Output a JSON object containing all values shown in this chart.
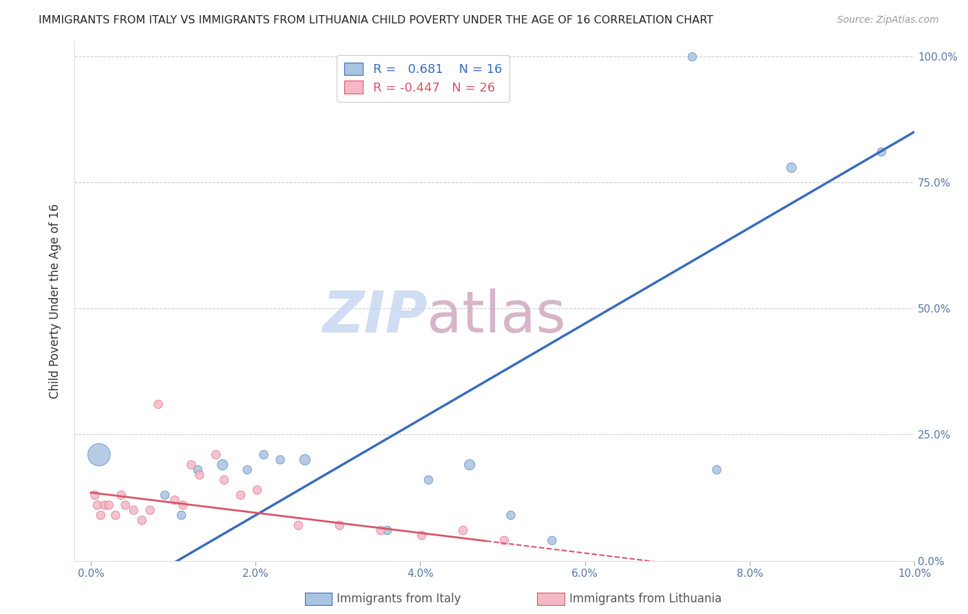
{
  "title": "IMMIGRANTS FROM ITALY VS IMMIGRANTS FROM LITHUANIA CHILD POVERTY UNDER THE AGE OF 16 CORRELATION CHART",
  "source": "Source: ZipAtlas.com",
  "ylabel": "Child Poverty Under the Age of 16",
  "x_label_blue": "Immigrants from Italy",
  "x_label_pink": "Immigrants from Lithuania",
  "xlim": [
    -0.2,
    10.0
  ],
  "ylim": [
    0.0,
    103.0
  ],
  "xtick_vals": [
    0.0,
    2.0,
    4.0,
    6.0,
    8.0,
    10.0
  ],
  "xtick_labels": [
    "0.0%",
    "2.0%",
    "4.0%",
    "6.0%",
    "8.0%",
    "10.0%"
  ],
  "ytick_vals": [
    0.0,
    25.0,
    50.0,
    75.0,
    100.0
  ],
  "ytick_labels": [
    "0.0%",
    "25.0%",
    "50.0%",
    "75.0%",
    "100.0%"
  ],
  "R_blue": 0.681,
  "N_blue": 16,
  "R_pink": -0.447,
  "N_pink": 26,
  "blue_color": "#a8c4e0",
  "blue_line_color": "#3a6bbf",
  "pink_color": "#f4b8c8",
  "pink_line_color": "#d9546a",
  "watermark_zip": "ZIP",
  "watermark_atlas": "atlas",
  "watermark_color_zip": "#c8d8f0",
  "watermark_color_atlas": "#c8d8f0",
  "blue_scatter_x": [
    0.1,
    0.9,
    1.1,
    1.3,
    1.6,
    1.9,
    2.1,
    2.3,
    2.6,
    3.6,
    4.1,
    4.6,
    5.1,
    5.6,
    7.6,
    9.6
  ],
  "blue_scatter_y": [
    21,
    13,
    9,
    18,
    19,
    18,
    21,
    20,
    20,
    6,
    16,
    19,
    9,
    4,
    18,
    81
  ],
  "blue_scatter_size": [
    550,
    80,
    80,
    80,
    120,
    80,
    80,
    80,
    120,
    80,
    80,
    120,
    80,
    80,
    80,
    80
  ],
  "pink_scatter_x": [
    0.05,
    0.08,
    0.12,
    0.17,
    0.22,
    0.3,
    0.37,
    0.42,
    0.52,
    0.62,
    0.72,
    0.82,
    1.02,
    1.12,
    1.22,
    1.32,
    1.52,
    1.62,
    1.82,
    2.02,
    2.52,
    3.02,
    3.52,
    4.02,
    4.52,
    5.02
  ],
  "pink_scatter_y": [
    13,
    11,
    9,
    11,
    11,
    9,
    13,
    11,
    10,
    8,
    10,
    31,
    12,
    11,
    19,
    17,
    21,
    16,
    13,
    14,
    7,
    7,
    6,
    5,
    6,
    4
  ],
  "pink_scatter_size": [
    80,
    80,
    80,
    80,
    80,
    80,
    80,
    80,
    80,
    80,
    80,
    80,
    80,
    80,
    80,
    80,
    80,
    80,
    80,
    80,
    80,
    80,
    80,
    80,
    80,
    80
  ],
  "blue_high_x": 7.3,
  "blue_high_y": 100.0,
  "blue_medium_x": 8.5,
  "blue_medium_y": 78.0,
  "blue_line_intercept": -10.0,
  "blue_line_slope": 9.5,
  "pink_line_intercept": 13.5,
  "pink_line_slope": -2.0,
  "pink_solid_end": 4.8,
  "pink_dash_end": 7.2
}
